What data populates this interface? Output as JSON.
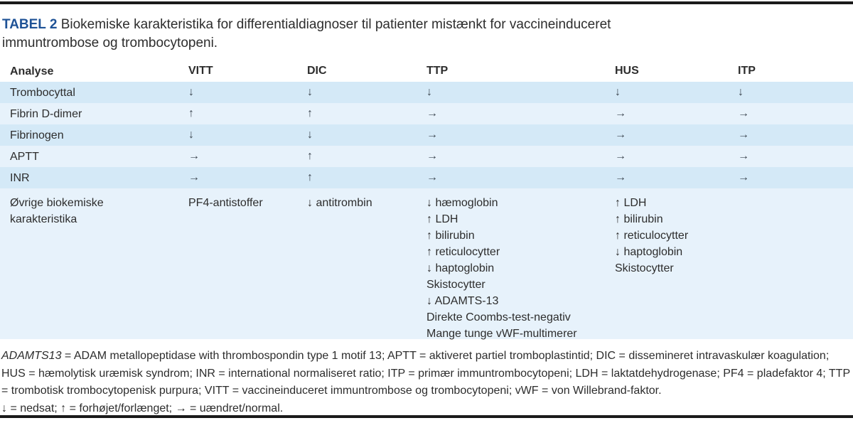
{
  "title": {
    "label": "TABEL 2",
    "text": "Biokemiske karakteristika for differentialdiagnoser til patienter mistænkt for vaccineinduceret immuntrombose og trombocytopeni."
  },
  "colors": {
    "title_accent": "#1e5296",
    "row_dark": "#d4e9f7",
    "row_light": "#e7f2fb",
    "text": "#2d2d2d",
    "rule": "#1a1a1a",
    "arrow": "#3c4650"
  },
  "table": {
    "headers": [
      "Analyse",
      "VITT",
      "DIC",
      "TTP",
      "HUS",
      "ITP"
    ],
    "rows": [
      {
        "analyse": "Trombocyttal",
        "vitt": "↓",
        "dic": "↓",
        "ttp": "↓",
        "hus": "↓",
        "itp": "↓"
      },
      {
        "analyse": "Fibrin D-dimer",
        "vitt": "↑",
        "dic": "↑",
        "ttp": "→",
        "hus": "→",
        "itp": "→"
      },
      {
        "analyse": "Fibrinogen",
        "vitt": "↓",
        "dic": "↓",
        "ttp": "→",
        "hus": "→",
        "itp": "→"
      },
      {
        "analyse": "APTT",
        "vitt": "→",
        "dic": "↑",
        "ttp": "→",
        "hus": "→",
        "itp": "→"
      },
      {
        "analyse": "INR",
        "vitt": "→",
        "dic": "↑",
        "ttp": "→",
        "hus": "→",
        "itp": "→"
      },
      {
        "analyse": "Øvrige biokemiske karakteristika",
        "vitt": "PF4-antistoffer",
        "dic": "↓ antitrombin",
        "ttp": "↓ hæmoglobin\n↑ LDH\n↑ bilirubin\n↑ reticulocytter\n↓ haptoglobin\nSkistocytter\n↓ ADAMTS-13\nDirekte Coombs-test-negativ\nMange tunge vWF-multimerer",
        "hus": "↑ LDH\n↑ bilirubin\n↑ reticulocytter\n↓ haptoglobin\nSkistocytter",
        "itp": ""
      }
    ]
  },
  "footnote": {
    "abbrev_italic": "ADAMTS13",
    "abbrev_rest": " = ADAM metallopeptidase with thrombospondin type 1 motif 13; APTT = aktiveret partiel tromboplastintid; DIC = dissemineret intravaskulær koagulation; HUS = hæmolytisk uræmisk syndrom; INR = international normaliseret ratio; ITP = primær immuntrombocytopeni; LDH = laktatdehydrogenase; PF4 = pladefaktor 4; TTP = trombotisk trombocytopenisk purpura; VITT = vaccineinduceret immuntrombose og trombocytopeni; vWF = von Willebrand-faktor.",
    "symbols": "↓ = nedsat; ↑ = forhøjet/forlænget; → = uændret/normal."
  }
}
